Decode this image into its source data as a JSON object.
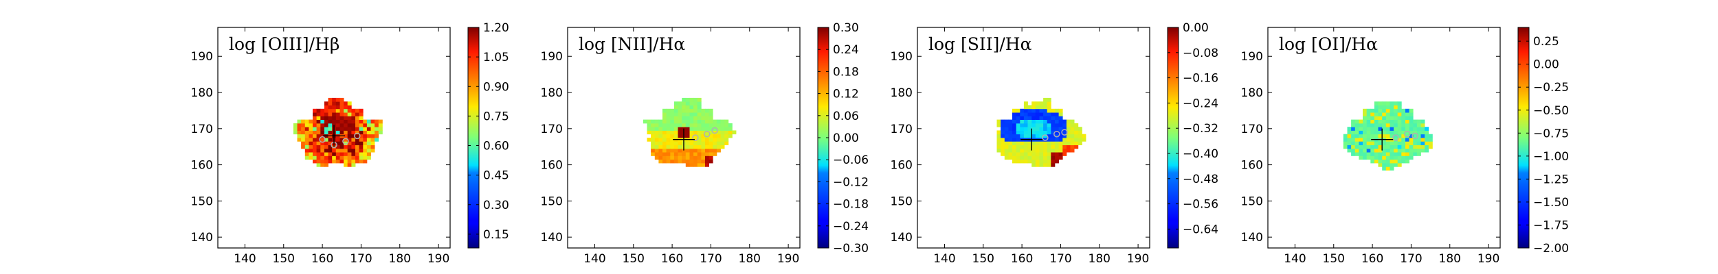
{
  "chart_data": [
    {
      "type": "heatmap",
      "title": "log [OIII]/Hβ",
      "xlim": [
        133,
        193
      ],
      "ylim": [
        137,
        198
      ],
      "xticks": [
        140,
        150,
        160,
        170,
        180,
        190
      ],
      "yticks": [
        140,
        150,
        160,
        170,
        180,
        190
      ],
      "colorbar": {
        "min": 0.08,
        "max": 1.2,
        "ticks": [
          "0.15",
          "0.30",
          "0.45",
          "0.60",
          "0.75",
          "0.90",
          "1.05",
          "1.20"
        ]
      },
      "map": {
        "center": [
          163.5,
          168
        ],
        "radius_x": 11,
        "radius_y": 9.5,
        "levels": "mostly high (0.9–1.2) in the north and centre, mixed 0.45–1.05 around the rim"
      },
      "marker": {
        "symbol": "+",
        "x": 163,
        "y": 168
      },
      "apertures": [
        [
          160,
          167
        ],
        [
          163,
          165.5
        ],
        [
          166,
          166.5
        ],
        [
          169,
          168
        ]
      ]
    },
    {
      "type": "heatmap",
      "title": "log [NII]/Hα",
      "xlim": [
        133,
        193
      ],
      "ylim": [
        137,
        198
      ],
      "xticks": [
        140,
        150,
        160,
        170,
        180,
        190
      ],
      "yticks": [
        140,
        150,
        160,
        170,
        180,
        190
      ],
      "colorbar": {
        "min": -0.3,
        "max": 0.3,
        "ticks": [
          "0.30",
          "0.24",
          "0.18",
          "0.12",
          "0.06",
          "0.00",
          "−0.06",
          "−0.12",
          "−0.18",
          "−0.24",
          "−0.30"
        ]
      },
      "map": {
        "center": [
          163.5,
          168
        ],
        "radius_x": 11,
        "radius_y": 9.5,
        "levels": "≈0.0 in the north, 0.18–0.30 in the south, ≈0.30 at the centre"
      },
      "marker": {
        "symbol": "+",
        "x": 163,
        "y": 167
      },
      "apertures": [
        [
          166,
          167.5
        ],
        [
          169,
          168.5
        ],
        [
          171,
          169.5
        ]
      ]
    },
    {
      "type": "heatmap",
      "title": "log [SII]/Hα",
      "xlim": [
        133,
        193
      ],
      "ylim": [
        137,
        198
      ],
      "xticks": [
        140,
        150,
        160,
        170,
        180,
        190
      ],
      "yticks": [
        140,
        150,
        160,
        170,
        180,
        190
      ],
      "colorbar": {
        "min": -0.7,
        "max": 0.0,
        "ticks": [
          "0.00",
          "−0.08",
          "−0.16",
          "−0.24",
          "−0.32",
          "−0.40",
          "−0.48",
          "−0.56",
          "−0.64"
        ]
      },
      "map": {
        "center": [
          163.5,
          168
        ],
        "radius_x": 11,
        "radius_y": 9.5,
        "levels": "≈−0.56 in a northern ring, ≈−0.35 at the rim, ≈0.0 in the south-east"
      },
      "marker": {
        "symbol": "+",
        "x": 162.5,
        "y": 167
      },
      "apertures": [
        [
          166,
          167.5
        ],
        [
          169,
          168.5
        ],
        [
          171,
          169
        ]
      ]
    },
    {
      "type": "heatmap",
      "title": "log [OI]/Hα",
      "xlim": [
        133,
        193
      ],
      "ylim": [
        137,
        198
      ],
      "xticks": [
        140,
        150,
        160,
        170,
        180,
        190
      ],
      "yticks": [
        140,
        150,
        160,
        170,
        180,
        190
      ],
      "colorbar": {
        "min": -2.0,
        "max": 0.4,
        "ticks": [
          "0.25",
          "0.00",
          "−0.25",
          "−0.50",
          "−0.75",
          "−1.00",
          "−1.25",
          "−1.50",
          "−1.75",
          "−2.00"
        ]
      },
      "map": {
        "center": [
          163.5,
          168
        ],
        "radius_x": 11,
        "radius_y": 9.5,
        "levels": "mostly ≈−1.0 with lighter ≈−0.75 patches"
      },
      "marker": {
        "symbol": "+",
        "x": 162.5,
        "y": 167
      },
      "apertures": [
        [
          166,
          167.5
        ],
        [
          169,
          168.5
        ],
        [
          171,
          168
        ]
      ]
    }
  ]
}
